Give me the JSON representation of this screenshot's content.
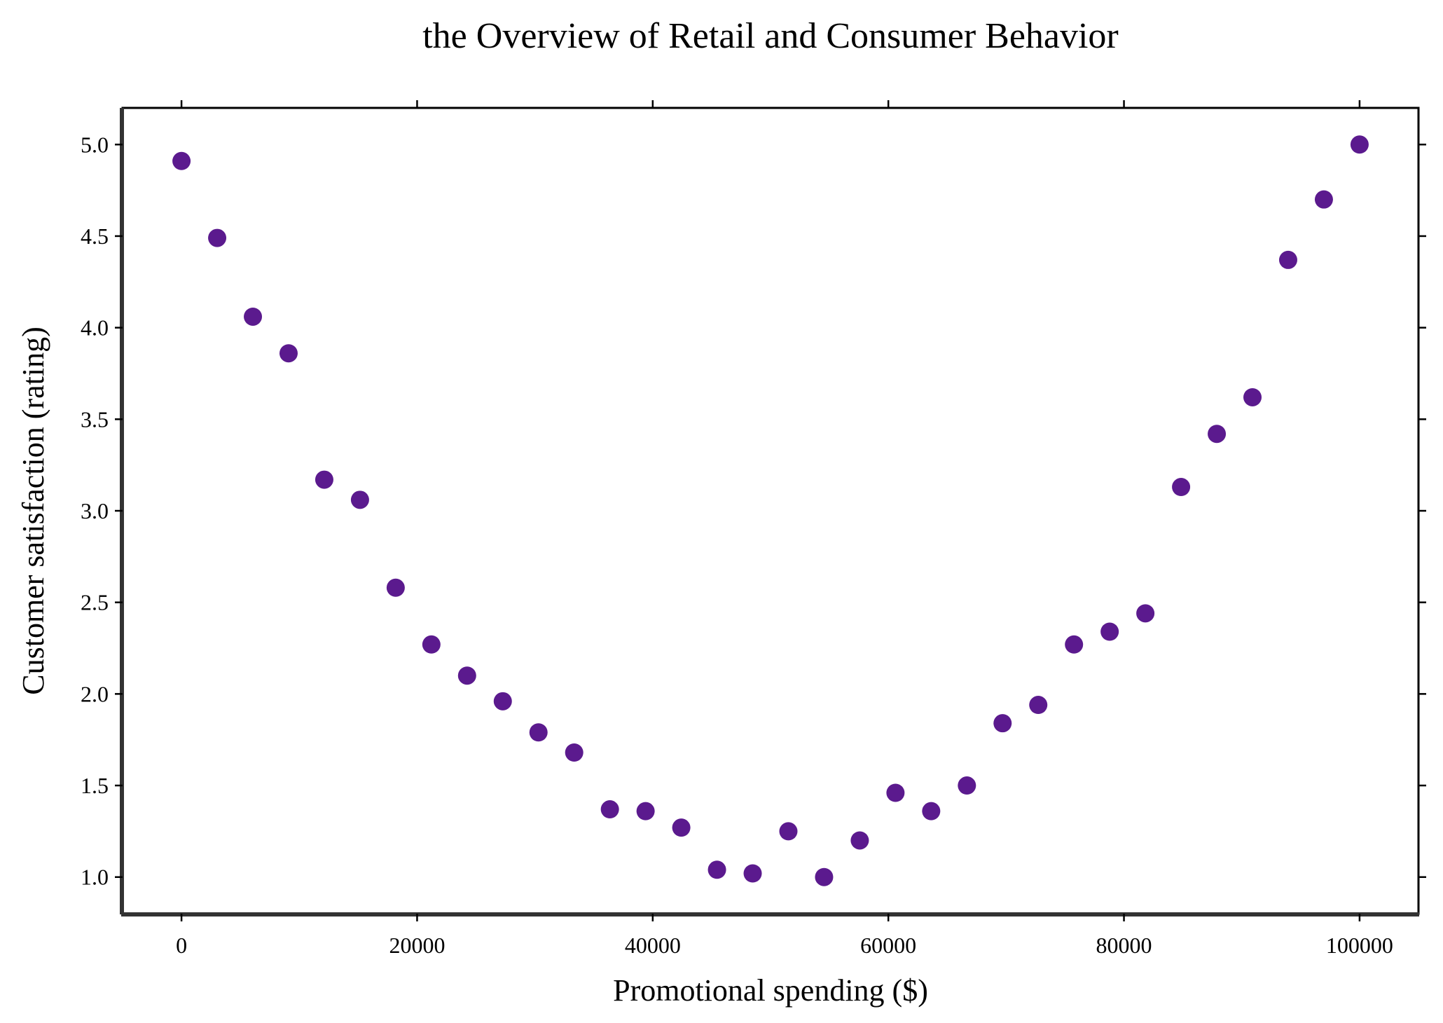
{
  "chart_data": {
    "type": "scatter",
    "title": "the Overview of Retail and Consumer Behavior",
    "xlabel": "Promotional spending ($)",
    "ylabel": "Customer satisfaction (rating)",
    "xlim": [
      -5000,
      105000
    ],
    "ylim": [
      0.8,
      5.2
    ],
    "xticks": [
      0,
      20000,
      40000,
      60000,
      80000,
      100000
    ],
    "xtick_labels": [
      "0",
      "20000",
      "40000",
      "60000",
      "80000",
      "100000"
    ],
    "yticks": [
      1.0,
      1.5,
      2.0,
      2.5,
      3.0,
      3.5,
      4.0,
      4.5,
      5.0
    ],
    "ytick_labels": [
      "1.0",
      "1.5",
      "2.0",
      "2.5",
      "3.0",
      "3.5",
      "4.0",
      "4.5",
      "5.0"
    ],
    "grid": false,
    "marker_color": "#5b1a8e",
    "series": [
      {
        "x": [
          0,
          3030,
          6061,
          9091,
          12121,
          15152,
          18182,
          21212,
          24242,
          27273,
          30303,
          33333,
          36364,
          39394,
          42424,
          45455,
          48485,
          51515,
          54545,
          57576,
          60606,
          63636,
          66667,
          69697,
          72727,
          75758,
          78788,
          81818,
          84848,
          87879,
          90909,
          93939,
          96970,
          100000
        ],
        "y": [
          4.91,
          4.49,
          4.06,
          3.86,
          3.17,
          3.06,
          2.58,
          2.27,
          2.1,
          1.96,
          1.79,
          1.68,
          1.37,
          1.36,
          1.27,
          1.04,
          1.02,
          1.25,
          1.0,
          1.2,
          1.46,
          1.36,
          1.5,
          1.84,
          1.94,
          2.27,
          2.34,
          2.44,
          3.13,
          3.42,
          3.62,
          4.37,
          4.7,
          5.0
        ]
      }
    ]
  }
}
